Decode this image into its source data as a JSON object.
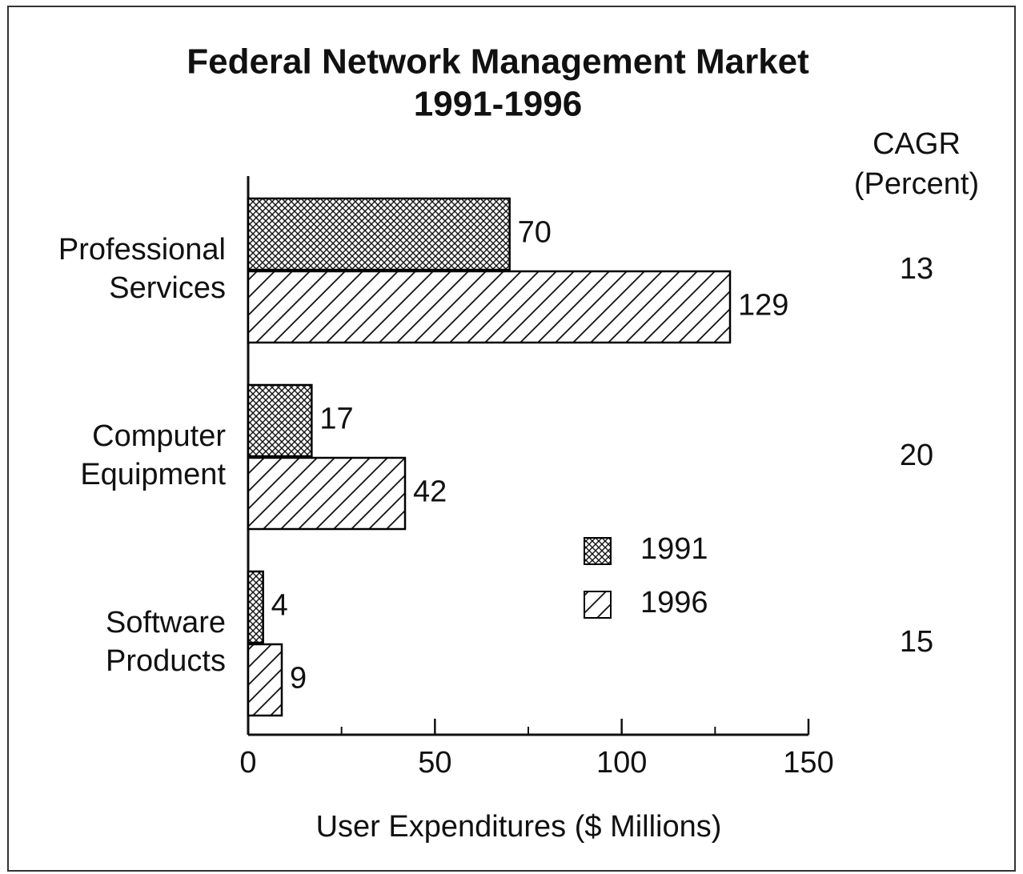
{
  "chart_data": {
    "type": "bar",
    "orientation": "horizontal",
    "title": "Federal Network Management Market",
    "subtitle": "1991-1996",
    "xlabel": "User Expenditures ($ Millions)",
    "categories": [
      "Professional Services",
      "Computer Equipment",
      "Software Products"
    ],
    "series": [
      {
        "name": "1991",
        "color": "#000000",
        "pattern": "crosshatch",
        "values": [
          70,
          17,
          4
        ]
      },
      {
        "name": "1996",
        "color": "#000000",
        "pattern": "diagonal",
        "values": [
          129,
          42,
          9
        ]
      }
    ],
    "cagr_label": "CAGR",
    "cagr_unit": "(Percent)",
    "cagr": [
      13,
      20,
      15
    ],
    "xlim": [
      0,
      150
    ],
    "xticks": [
      0,
      50,
      100,
      150
    ],
    "xminorticks": [
      25,
      75,
      125
    ],
    "legend": "center"
  }
}
